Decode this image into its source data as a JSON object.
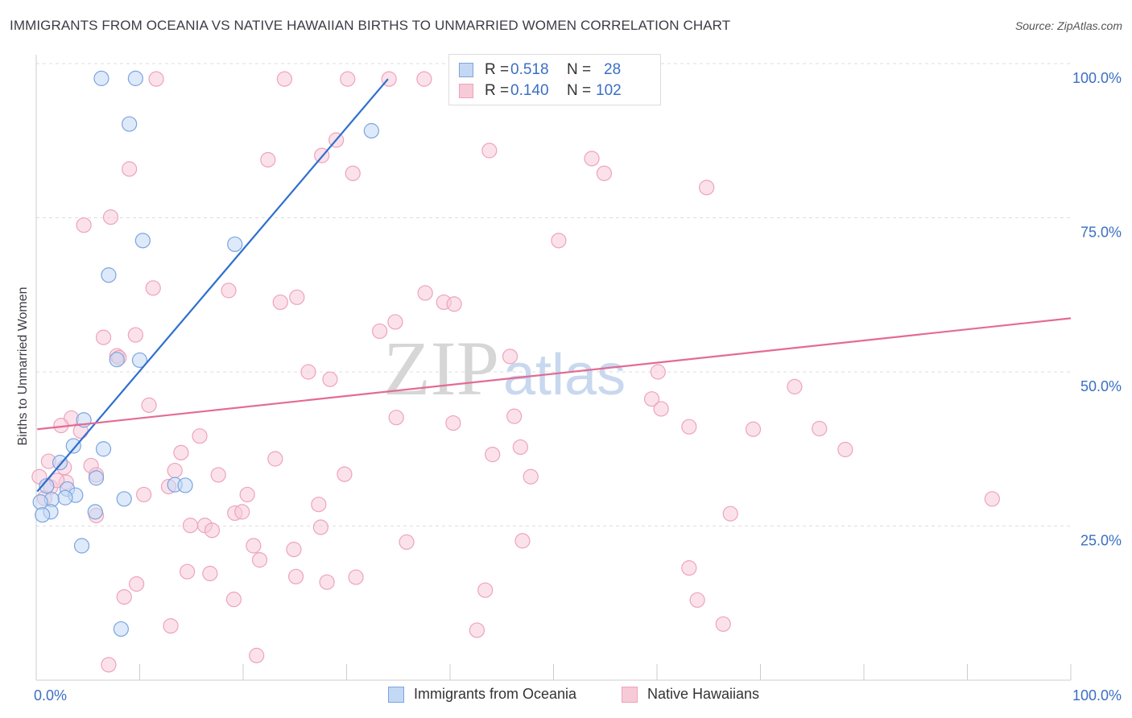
{
  "title": "IMMIGRANTS FROM OCEANIA VS NATIVE HAWAIIAN BIRTHS TO UNMARRIED WOMEN CORRELATION CHART",
  "source": "Source: ZipAtlas.com",
  "watermark": {
    "left": "ZIP",
    "right": "atlas"
  },
  "colors": {
    "blue": "#7ba4e0",
    "blue_fill": "#c3d8f5",
    "blue_line": "#2f6fce",
    "pink": "#eea3bb",
    "pink_fill": "#f7cad8",
    "pink_line": "#e36b95",
    "accent_text": "#3a6fc4"
  },
  "stats": [
    {
      "r_label": "R =",
      "r_value": "0.518",
      "n_label": "N =",
      "n_value": "28"
    },
    {
      "r_label": "R =",
      "r_value": "0.140",
      "n_label": "N =",
      "n_value": "102"
    }
  ],
  "legend": [
    "Immigrants from Oceania",
    "Native Hawaiians"
  ],
  "chart_data": {
    "type": "scatter",
    "title": "IMMIGRANTS FROM OCEANIA VS NATIVE HAWAIIAN BIRTHS TO UNMARRIED WOMEN CORRELATION CHART",
    "xlabel": "",
    "ylabel": "Births to Unmarried Women",
    "xlim": [
      0,
      100
    ],
    "ylim": [
      0,
      100
    ],
    "x_tick_labels": [
      "0.0%",
      "100.0%"
    ],
    "y_ticks": [
      25,
      50,
      75,
      100
    ],
    "y_tick_labels": [
      "25.0%",
      "50.0%",
      "75.0%",
      "100.0%"
    ],
    "series": [
      {
        "name": "Immigrants from Oceania",
        "r": 0.518,
        "n": 28,
        "trend": {
          "x": [
            0.1,
            34.0
          ],
          "y": [
            30.6,
            97.5
          ]
        },
        "points": [
          {
            "x": 6.3,
            "y": 97.6
          },
          {
            "x": 9.6,
            "y": 97.6
          },
          {
            "x": 9.0,
            "y": 90.2
          },
          {
            "x": 32.4,
            "y": 89.1
          },
          {
            "x": 10.3,
            "y": 71.3
          },
          {
            "x": 19.2,
            "y": 70.7
          },
          {
            "x": 7.0,
            "y": 65.7
          },
          {
            "x": 7.8,
            "y": 52.0
          },
          {
            "x": 10.0,
            "y": 51.9
          },
          {
            "x": 4.6,
            "y": 42.2
          },
          {
            "x": 3.6,
            "y": 38.0
          },
          {
            "x": 6.5,
            "y": 37.5
          },
          {
            "x": 5.8,
            "y": 32.8
          },
          {
            "x": 3.0,
            "y": 31.0
          },
          {
            "x": 1.0,
            "y": 31.5
          },
          {
            "x": 3.8,
            "y": 30.0
          },
          {
            "x": 2.8,
            "y": 29.6
          },
          {
            "x": 1.5,
            "y": 29.3
          },
          {
            "x": 0.4,
            "y": 28.9
          },
          {
            "x": 8.5,
            "y": 29.4
          },
          {
            "x": 13.4,
            "y": 31.7
          },
          {
            "x": 14.4,
            "y": 31.6
          },
          {
            "x": 1.4,
            "y": 27.3
          },
          {
            "x": 0.6,
            "y": 26.8
          },
          {
            "x": 5.7,
            "y": 27.3
          },
          {
            "x": 4.4,
            "y": 21.8
          },
          {
            "x": 8.2,
            "y": 8.3
          },
          {
            "x": 2.3,
            "y": 35.3
          }
        ]
      },
      {
        "name": "Native Hawaiians",
        "r": 0.14,
        "n": 102,
        "trend": {
          "x": [
            0.1,
            100.0
          ],
          "y": [
            40.7,
            58.7
          ]
        },
        "points": [
          {
            "x": 11.6,
            "y": 97.5
          },
          {
            "x": 24.0,
            "y": 97.5
          },
          {
            "x": 30.1,
            "y": 97.5
          },
          {
            "x": 34.1,
            "y": 97.5
          },
          {
            "x": 37.5,
            "y": 97.5
          },
          {
            "x": 41.3,
            "y": 97.5
          },
          {
            "x": 51.7,
            "y": 97.5
          },
          {
            "x": 29.0,
            "y": 87.6
          },
          {
            "x": 43.8,
            "y": 85.9
          },
          {
            "x": 27.6,
            "y": 85.1
          },
          {
            "x": 22.4,
            "y": 84.4
          },
          {
            "x": 53.7,
            "y": 84.6
          },
          {
            "x": 9.0,
            "y": 82.9
          },
          {
            "x": 30.6,
            "y": 82.2
          },
          {
            "x": 54.9,
            "y": 82.2
          },
          {
            "x": 64.8,
            "y": 79.9
          },
          {
            "x": 7.2,
            "y": 75.1
          },
          {
            "x": 4.6,
            "y": 73.8
          },
          {
            "x": 50.5,
            "y": 71.3
          },
          {
            "x": 11.3,
            "y": 63.6
          },
          {
            "x": 18.6,
            "y": 63.2
          },
          {
            "x": 37.6,
            "y": 62.8
          },
          {
            "x": 25.2,
            "y": 62.1
          },
          {
            "x": 23.6,
            "y": 61.3
          },
          {
            "x": 39.4,
            "y": 61.3
          },
          {
            "x": 40.4,
            "y": 61.0
          },
          {
            "x": 34.7,
            "y": 58.1
          },
          {
            "x": 33.2,
            "y": 56.6
          },
          {
            "x": 9.6,
            "y": 56.0
          },
          {
            "x": 6.5,
            "y": 55.6
          },
          {
            "x": 7.8,
            "y": 52.6
          },
          {
            "x": 45.8,
            "y": 52.5
          },
          {
            "x": 26.3,
            "y": 50.0
          },
          {
            "x": 60.1,
            "y": 50.0
          },
          {
            "x": 28.4,
            "y": 48.8
          },
          {
            "x": 73.3,
            "y": 47.6
          },
          {
            "x": 59.5,
            "y": 45.6
          },
          {
            "x": 10.9,
            "y": 44.6
          },
          {
            "x": 60.4,
            "y": 44.0
          },
          {
            "x": 34.8,
            "y": 42.6
          },
          {
            "x": 46.2,
            "y": 42.8
          },
          {
            "x": 3.4,
            "y": 42.5
          },
          {
            "x": 2.4,
            "y": 41.3
          },
          {
            "x": 40.3,
            "y": 41.7
          },
          {
            "x": 63.1,
            "y": 41.1
          },
          {
            "x": 69.3,
            "y": 40.7
          },
          {
            "x": 75.7,
            "y": 40.8
          },
          {
            "x": 4.3,
            "y": 40.4
          },
          {
            "x": 15.8,
            "y": 39.6
          },
          {
            "x": 46.8,
            "y": 37.8
          },
          {
            "x": 78.2,
            "y": 37.4
          },
          {
            "x": 14.0,
            "y": 36.9
          },
          {
            "x": 44.1,
            "y": 36.6
          },
          {
            "x": 23.1,
            "y": 35.9
          },
          {
            "x": 2.7,
            "y": 34.5
          },
          {
            "x": 5.3,
            "y": 34.8
          },
          {
            "x": 13.4,
            "y": 34.0
          },
          {
            "x": 5.8,
            "y": 33.3
          },
          {
            "x": 17.6,
            "y": 33.3
          },
          {
            "x": 29.8,
            "y": 33.4
          },
          {
            "x": 47.8,
            "y": 33.0
          },
          {
            "x": 2.9,
            "y": 32.1
          },
          {
            "x": 12.8,
            "y": 31.4
          },
          {
            "x": 1.4,
            "y": 31.3
          },
          {
            "x": 10.4,
            "y": 30.1
          },
          {
            "x": 20.4,
            "y": 30.1
          },
          {
            "x": 92.4,
            "y": 29.4
          },
          {
            "x": 27.3,
            "y": 28.5
          },
          {
            "x": 5.8,
            "y": 26.7
          },
          {
            "x": 19.2,
            "y": 27.1
          },
          {
            "x": 19.9,
            "y": 27.3
          },
          {
            "x": 67.1,
            "y": 27.0
          },
          {
            "x": 14.9,
            "y": 25.1
          },
          {
            "x": 16.3,
            "y": 25.1
          },
          {
            "x": 17.0,
            "y": 24.3
          },
          {
            "x": 27.5,
            "y": 24.8
          },
          {
            "x": 35.8,
            "y": 22.4
          },
          {
            "x": 47.0,
            "y": 22.6
          },
          {
            "x": 21.0,
            "y": 21.8
          },
          {
            "x": 24.9,
            "y": 21.2
          },
          {
            "x": 21.6,
            "y": 19.5
          },
          {
            "x": 14.6,
            "y": 17.6
          },
          {
            "x": 16.8,
            "y": 17.3
          },
          {
            "x": 63.1,
            "y": 18.2
          },
          {
            "x": 25.1,
            "y": 16.8
          },
          {
            "x": 30.9,
            "y": 16.7
          },
          {
            "x": 28.1,
            "y": 15.9
          },
          {
            "x": 9.7,
            "y": 15.6
          },
          {
            "x": 43.4,
            "y": 14.6
          },
          {
            "x": 8.5,
            "y": 13.5
          },
          {
            "x": 19.1,
            "y": 13.1
          },
          {
            "x": 63.9,
            "y": 13.0
          },
          {
            "x": 13.0,
            "y": 8.8
          },
          {
            "x": 66.4,
            "y": 9.1
          },
          {
            "x": 42.6,
            "y": 8.1
          },
          {
            "x": 21.3,
            "y": 4.0
          },
          {
            "x": 7.0,
            "y": 2.5
          },
          {
            "x": 0.3,
            "y": 33.0
          },
          {
            "x": 0.8,
            "y": 29.5
          },
          {
            "x": 1.2,
            "y": 35.5
          },
          {
            "x": 2.0,
            "y": 32.4
          },
          {
            "x": 8.0,
            "y": 52.3
          }
        ]
      }
    ]
  }
}
